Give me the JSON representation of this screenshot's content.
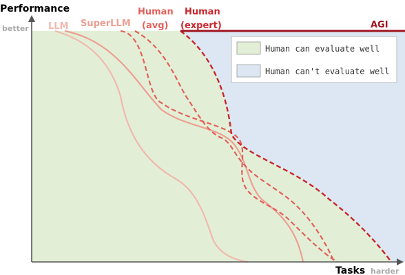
{
  "axes": {
    "y_label": "Performance",
    "y_end_label": "better",
    "x_label": "Tasks",
    "x_end_label": "harder"
  },
  "curves": [
    {
      "key": "llm",
      "label": "LLM",
      "color": "#f2b8ad",
      "style": "solid"
    },
    {
      "key": "superllm",
      "label": "SuperLLM",
      "color": "#ee9e92",
      "style": "solid"
    },
    {
      "key": "human_avg",
      "label": "Human\n(avg)",
      "color": "#e4605a",
      "style": "dashed"
    },
    {
      "key": "human_expert",
      "label": "Human\n(expert)",
      "color": "#c9272c",
      "style": "dashed"
    },
    {
      "key": "agi",
      "label": "AGI",
      "color": "#a0141e",
      "style": "solid"
    }
  ],
  "legend": [
    {
      "label": "Human can evaluate well",
      "color": "#e2efd6"
    },
    {
      "label": "Human can't evaluate well",
      "color": "#dde7f3"
    }
  ],
  "colors": {
    "green_region": "#e2efd6",
    "blue_region": "#dde7f3",
    "axis": "#555555"
  }
}
